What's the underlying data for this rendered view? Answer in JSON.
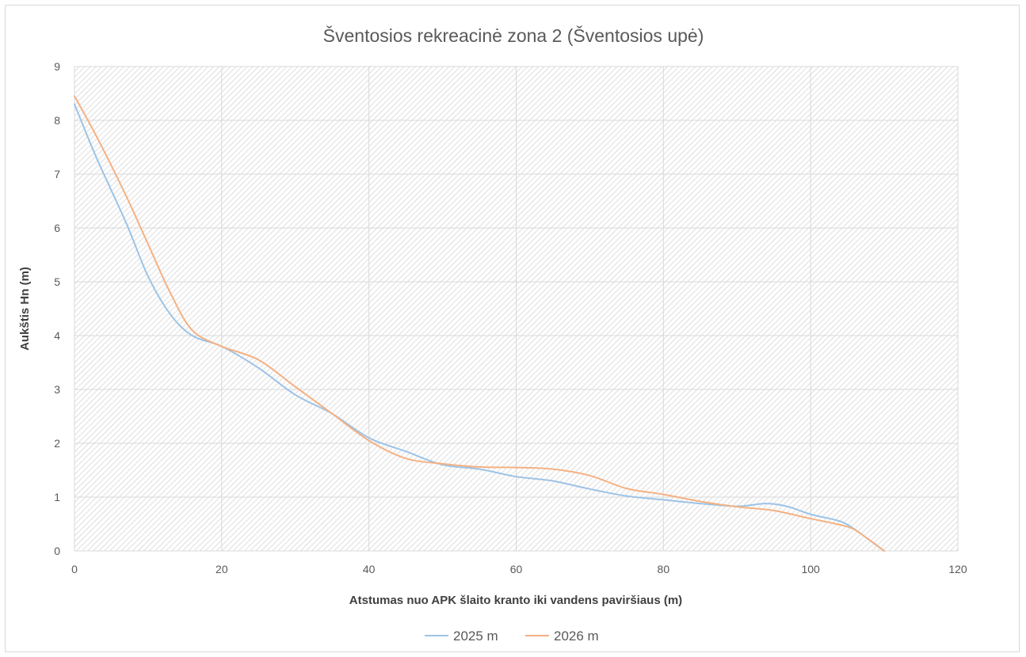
{
  "chart_data": {
    "type": "line",
    "title": "Šventosios rekreacinė zona 2 (Šventosios upė)",
    "xlabel": "Atstumas nuo APK šlaito kranto iki vandens paviršiaus (m)",
    "ylabel": "Aukštis Hn (m)",
    "xlim": [
      0,
      120
    ],
    "ylim": [
      0,
      9
    ],
    "xticks": [
      "0",
      "20",
      "40",
      "60",
      "80",
      "100",
      "120"
    ],
    "yticks": [
      "0",
      "1",
      "2",
      "3",
      "4",
      "5",
      "6",
      "7",
      "8",
      "9"
    ],
    "grid": true,
    "legend_position": "bottom",
    "series": [
      {
        "name": "2025 m",
        "color": "#9dc3e6",
        "points": [
          [
            0,
            8.3
          ],
          [
            3,
            7.3
          ],
          [
            7,
            6.1
          ],
          [
            10,
            5.1
          ],
          [
            13,
            4.4
          ],
          [
            16,
            4.0
          ],
          [
            20,
            3.8
          ],
          [
            25,
            3.4
          ],
          [
            30,
            2.9
          ],
          [
            35,
            2.55
          ],
          [
            40,
            2.1
          ],
          [
            45,
            1.85
          ],
          [
            50,
            1.6
          ],
          [
            55,
            1.52
          ],
          [
            60,
            1.38
          ],
          [
            65,
            1.3
          ],
          [
            70,
            1.15
          ],
          [
            75,
            1.02
          ],
          [
            80,
            0.95
          ],
          [
            85,
            0.88
          ],
          [
            90,
            0.83
          ],
          [
            94,
            0.88
          ],
          [
            97,
            0.82
          ],
          [
            100,
            0.68
          ],
          [
            104,
            0.55
          ],
          [
            106,
            0.4
          ],
          [
            108,
            0.2
          ],
          [
            110,
            0.0
          ]
        ]
      },
      {
        "name": "2026 m",
        "color": "#f4b183",
        "points": [
          [
            0,
            8.45
          ],
          [
            3,
            7.7
          ],
          [
            7,
            6.6
          ],
          [
            10,
            5.7
          ],
          [
            13,
            4.8
          ],
          [
            16,
            4.1
          ],
          [
            20,
            3.8
          ],
          [
            25,
            3.55
          ],
          [
            30,
            3.05
          ],
          [
            35,
            2.55
          ],
          [
            40,
            2.05
          ],
          [
            45,
            1.72
          ],
          [
            50,
            1.62
          ],
          [
            55,
            1.56
          ],
          [
            60,
            1.55
          ],
          [
            65,
            1.52
          ],
          [
            70,
            1.4
          ],
          [
            75,
            1.16
          ],
          [
            80,
            1.05
          ],
          [
            85,
            0.92
          ],
          [
            90,
            0.82
          ],
          [
            95,
            0.75
          ],
          [
            100,
            0.6
          ],
          [
            105,
            0.45
          ],
          [
            107,
            0.3
          ],
          [
            110,
            0.0
          ]
        ]
      }
    ]
  }
}
